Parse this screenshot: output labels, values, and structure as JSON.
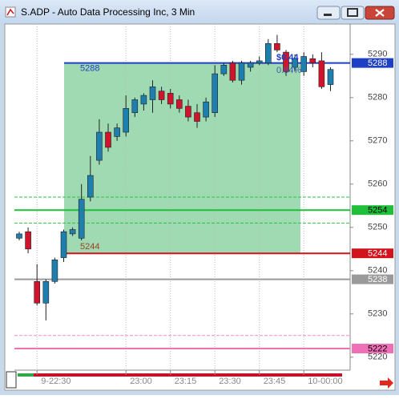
{
  "chart_data": {
    "type": "candlestick",
    "title": "S.ADP - Auto Data Processing Inc, 3 Min",
    "categories": [
      null,
      null,
      "9-22:30",
      null,
      null,
      null,
      null,
      null,
      null,
      null,
      null,
      null,
      "23:00",
      null,
      null,
      null,
      null,
      "23:15",
      null,
      null,
      null,
      null,
      "23:30",
      null,
      null,
      null,
      null,
      "23:45",
      null,
      null,
      null,
      null,
      "10-00:00",
      null,
      null,
      null
    ],
    "open": [
      5247.5,
      5249,
      5237.5,
      5232.5,
      5237.5,
      5243,
      5248.5,
      5247.5,
      5257,
      5265.5,
      5272,
      5271,
      5272,
      5276.5,
      5278.5,
      5279.5,
      5281.5,
      5281,
      5279.5,
      5278,
      5276.5,
      5275.5,
      5276.5,
      5285.5,
      5288,
      5284,
      5287,
      5288,
      5288,
      5292.5,
      5290.5,
      5287,
      5286,
      5289,
      5288.5,
      5283
    ],
    "high": [
      5249,
      5250,
      5241.5,
      5238,
      5243,
      5249.5,
      5250,
      5260,
      5266.5,
      5275,
      5274,
      5274,
      5280.5,
      5280,
      5281,
      5284,
      5282.5,
      5282,
      5280.5,
      5279.5,
      5278.5,
      5280,
      5287.5,
      5288,
      5288.5,
      5288.5,
      5288.5,
      5289.5,
      5293.5,
      5294.5,
      5291,
      5290,
      5290.5,
      5290,
      5290.5,
      5287
    ],
    "low": [
      5247,
      5244,
      5232,
      5228.5,
      5237,
      5242,
      5248,
      5247,
      5256,
      5264.5,
      5267.5,
      5270,
      5271,
      5275.5,
      5277,
      5276.5,
      5278.5,
      5277.5,
      5276.5,
      5274.5,
      5273,
      5274.5,
      5275.5,
      5285,
      5283.5,
      5283,
      5286,
      5287.5,
      5287.5,
      5290.5,
      5285,
      5286,
      5285,
      5287,
      5282,
      5281.5
    ],
    "close": [
      5248.5,
      5245,
      5232.5,
      5237.5,
      5242.5,
      5249,
      5249.5,
      5256.5,
      5262,
      5272,
      5268.5,
      5273,
      5277.5,
      5279.5,
      5280.5,
      5282.5,
      5279.5,
      5278.5,
      5277.5,
      5275.5,
      5274.5,
      5279,
      5285.5,
      5287.5,
      5284,
      5288,
      5288,
      5288.5,
      5292.5,
      5291,
      5286,
      5289,
      5289.5,
      5288,
      5282.5,
      5286.5
    ],
    "up_color": "#1e7fae",
    "down_color": "#d0142c",
    "ylim": [
      5217,
      5297
    ],
    "yticks": [
      5220,
      5230,
      5240,
      5250,
      5260,
      5270,
      5280,
      5290
    ],
    "levels": [
      {
        "value": 5288,
        "color": "#1f3fc4",
        "style": "solid",
        "tag": true,
        "on_chart": true
      },
      {
        "value": 5257,
        "color": "#2fc24a",
        "style": "dashed",
        "tag": false,
        "on_chart": false
      },
      {
        "value": 5254,
        "color": "#1fbf3a",
        "style": "solid",
        "tag": true,
        "on_chart": false
      },
      {
        "value": 5251,
        "color": "#2fc24a",
        "style": "dashed",
        "tag": false,
        "on_chart": false
      },
      {
        "value": 5244,
        "color": "#d0141c",
        "style": "solid",
        "tag": true,
        "on_chart": true
      },
      {
        "value": 5238,
        "color": "#9a9a9a",
        "style": "solid",
        "tag": true,
        "on_chart": false
      },
      {
        "value": 5225,
        "color": "#f08cc0",
        "style": "dashed",
        "tag": false,
        "on_chart": false
      },
      {
        "value": 5222,
        "color": "#f070b8",
        "style": "solid",
        "tag": true,
        "on_chart": false
      }
    ],
    "annotations": [
      "$0.44",
      "0.84%"
    ]
  }
}
